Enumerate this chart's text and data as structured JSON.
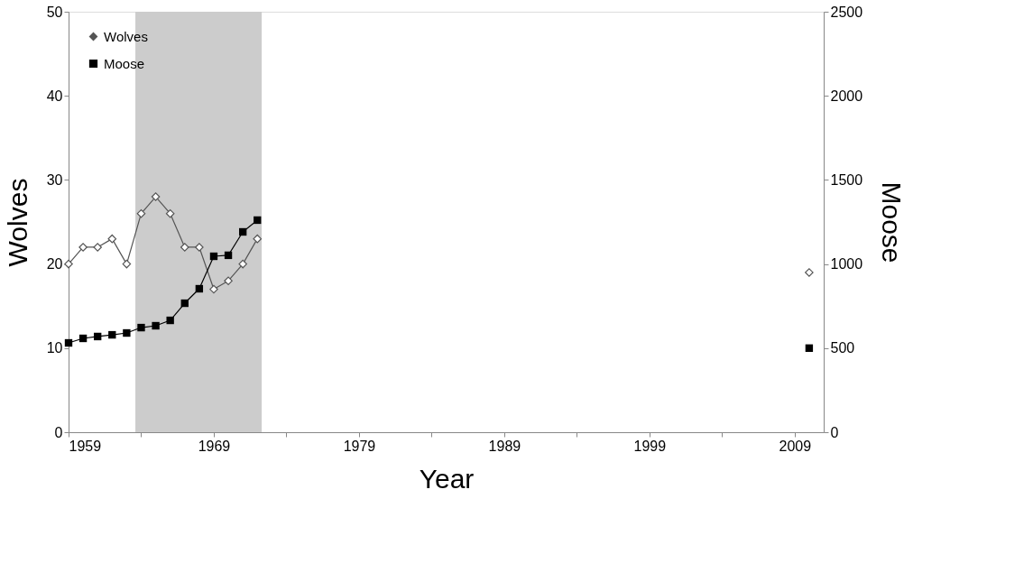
{
  "chart_data": {
    "type": "line",
    "xlabel": "Year",
    "ylabel": "Wolves",
    "y2label": "Moose",
    "x": [
      1959,
      1960,
      1961,
      1962,
      1963,
      1964,
      1965,
      1966,
      1967,
      1968,
      1969,
      1970,
      1971,
      1972
    ],
    "series": [
      {
        "name": "Wolves",
        "color": "#555555",
        "marker": "diamond",
        "values": [
          20,
          22,
          22,
          23,
          20,
          26,
          28,
          26,
          22,
          22,
          17,
          18,
          20,
          23
        ]
      },
      {
        "name": "Moose",
        "color": "#000000",
        "marker": "square",
        "axis": "y2",
        "values": [
          531,
          558,
          569,
          579,
          590,
          622,
          633,
          665,
          767,
          853,
          1046,
          1052,
          1191,
          1261
        ]
      },
      {
        "type": "scatter",
        "color": "#555555",
        "marker": "diamond",
        "x": [
          2010
        ],
        "values": [
          19
        ]
      },
      {
        "type": "scatter",
        "color": "#000000",
        "marker": "square",
        "axis": "y2",
        "x": [
          2010
        ],
        "values": [
          500
        ]
      }
    ],
    "xlim": [
      1959,
      2011
    ],
    "xticks": [
      1959,
      {
        "value": 1964,
        "label": null
      },
      1969,
      {
        "value": 1974,
        "label": null
      },
      1979,
      {
        "value": 1984,
        "label": null
      },
      1989,
      {
        "value": 1994,
        "label": null
      },
      1999,
      {
        "value": 2004,
        "label": null
      },
      2009
    ],
    "ylim": [
      0,
      50
    ],
    "yticks": [
      0,
      10,
      20,
      30,
      40,
      50
    ],
    "y2lim": [
      0,
      2500
    ],
    "y2ticks": [
      0,
      500,
      1000,
      1500,
      2000,
      2500
    ],
    "bands": [
      {
        "axis": "x",
        "from": 1963.6,
        "to": 1972.3,
        "color": "#cccccc"
      }
    ],
    "grid": false,
    "legend": "top left",
    "line_style": "solid"
  }
}
